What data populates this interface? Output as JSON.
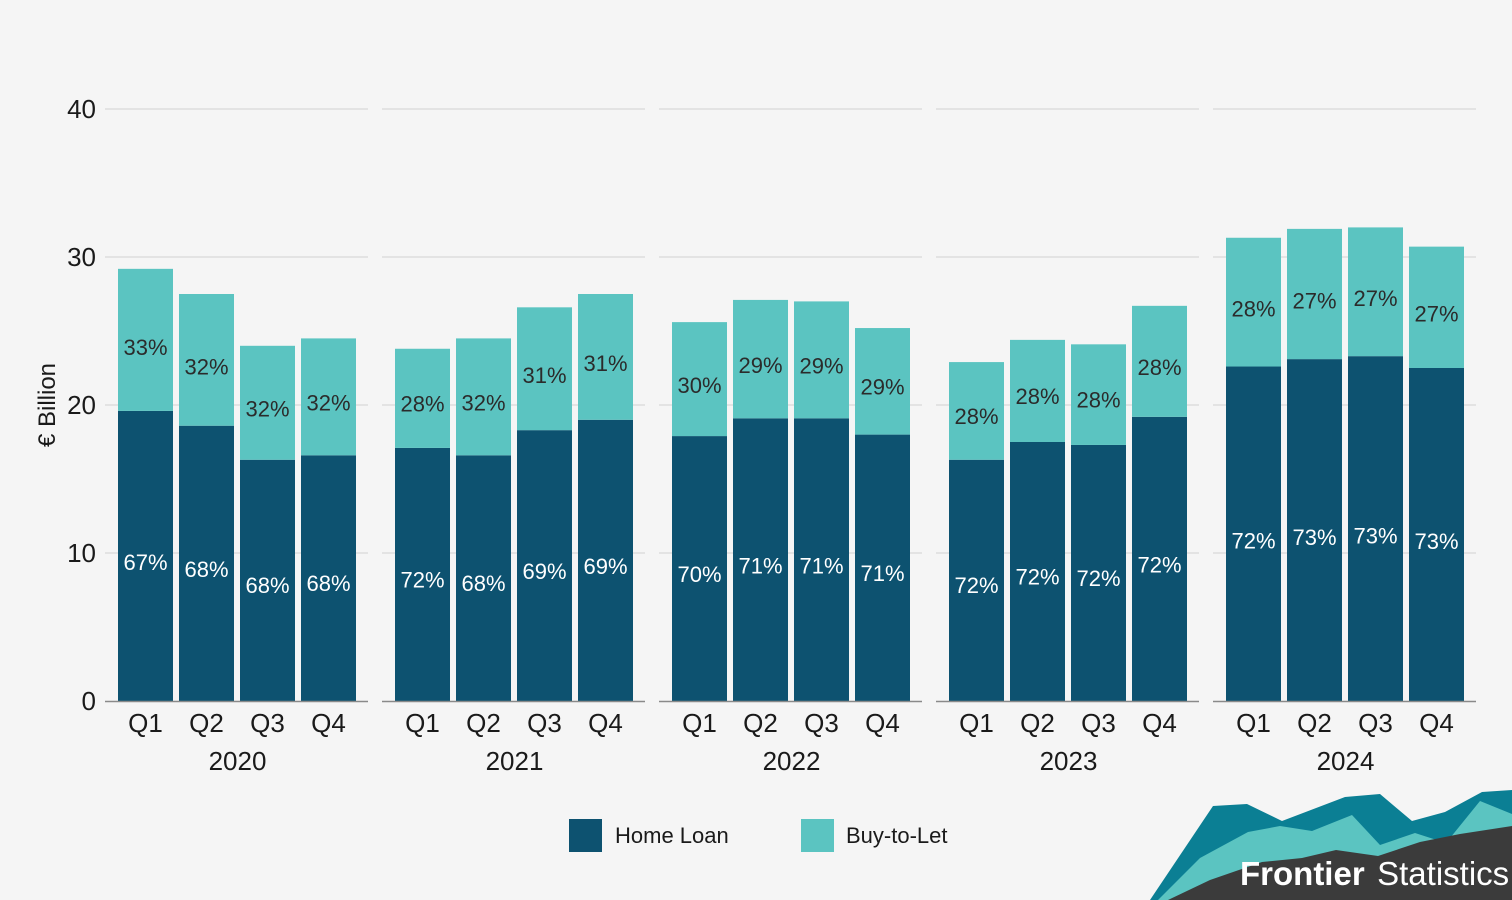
{
  "chart_data": {
    "type": "bar",
    "stacked": true,
    "ylabel": "€ Billion",
    "ylim": [
      0,
      40
    ],
    "yticks": [
      0,
      10,
      20,
      30,
      40
    ],
    "grid": true,
    "legend_position": "bottom-center",
    "groups": [
      {
        "label": "2020",
        "quarters": [
          "Q1",
          "Q2",
          "Q3",
          "Q4"
        ],
        "home_loan": [
          19.6,
          18.6,
          16.3,
          16.6
        ],
        "buy_to_let": [
          9.6,
          8.9,
          7.7,
          7.9
        ],
        "home_loan_pct": [
          "67%",
          "68%",
          "68%",
          "68%"
        ],
        "buy_to_let_pct": [
          "33%",
          "32%",
          "32%",
          "32%"
        ]
      },
      {
        "label": "2021",
        "quarters": [
          "Q1",
          "Q2",
          "Q3",
          "Q4"
        ],
        "home_loan": [
          17.1,
          16.6,
          18.3,
          19.0
        ],
        "buy_to_let": [
          6.7,
          7.9,
          8.3,
          8.5
        ],
        "home_loan_pct": [
          "72%",
          "68%",
          "69%",
          "69%"
        ],
        "buy_to_let_pct": [
          "28%",
          "32%",
          "31%",
          "31%"
        ]
      },
      {
        "label": "2022",
        "quarters": [
          "Q1",
          "Q2",
          "Q3",
          "Q4"
        ],
        "home_loan": [
          17.9,
          19.1,
          19.1,
          18.0
        ],
        "buy_to_let": [
          7.7,
          8.0,
          7.9,
          7.2
        ],
        "home_loan_pct": [
          "70%",
          "71%",
          "71%",
          "71%"
        ],
        "buy_to_let_pct": [
          "30%",
          "29%",
          "29%",
          "29%"
        ]
      },
      {
        "label": "2023",
        "quarters": [
          "Q1",
          "Q2",
          "Q3",
          "Q4"
        ],
        "home_loan": [
          16.3,
          17.5,
          17.3,
          19.2
        ],
        "buy_to_let": [
          6.6,
          6.9,
          6.8,
          7.5
        ],
        "home_loan_pct": [
          "72%",
          "72%",
          "72%",
          "72%"
        ],
        "buy_to_let_pct": [
          "28%",
          "28%",
          "28%",
          "28%"
        ]
      },
      {
        "label": "2024",
        "quarters": [
          "Q1",
          "Q2",
          "Q3",
          "Q4"
        ],
        "home_loan": [
          22.6,
          23.1,
          23.3,
          22.5
        ],
        "buy_to_let": [
          8.7,
          8.8,
          8.7,
          8.2
        ],
        "home_loan_pct": [
          "72%",
          "73%",
          "73%",
          "73%"
        ],
        "buy_to_let_pct": [
          "28%",
          "27%",
          "27%",
          "27%"
        ]
      }
    ],
    "series": [
      {
        "name": "Home Loan",
        "color": "#0d5270",
        "label_color": "#ffffff"
      },
      {
        "name": "Buy-to-Let",
        "color": "#5bc4c1",
        "label_color": "#2b2b2b"
      }
    ]
  },
  "branding": {
    "bold": "Frontier",
    "light": "Statistics",
    "colors": [
      "#0b7f94",
      "#5bc4c1",
      "#3b3b3b"
    ]
  }
}
